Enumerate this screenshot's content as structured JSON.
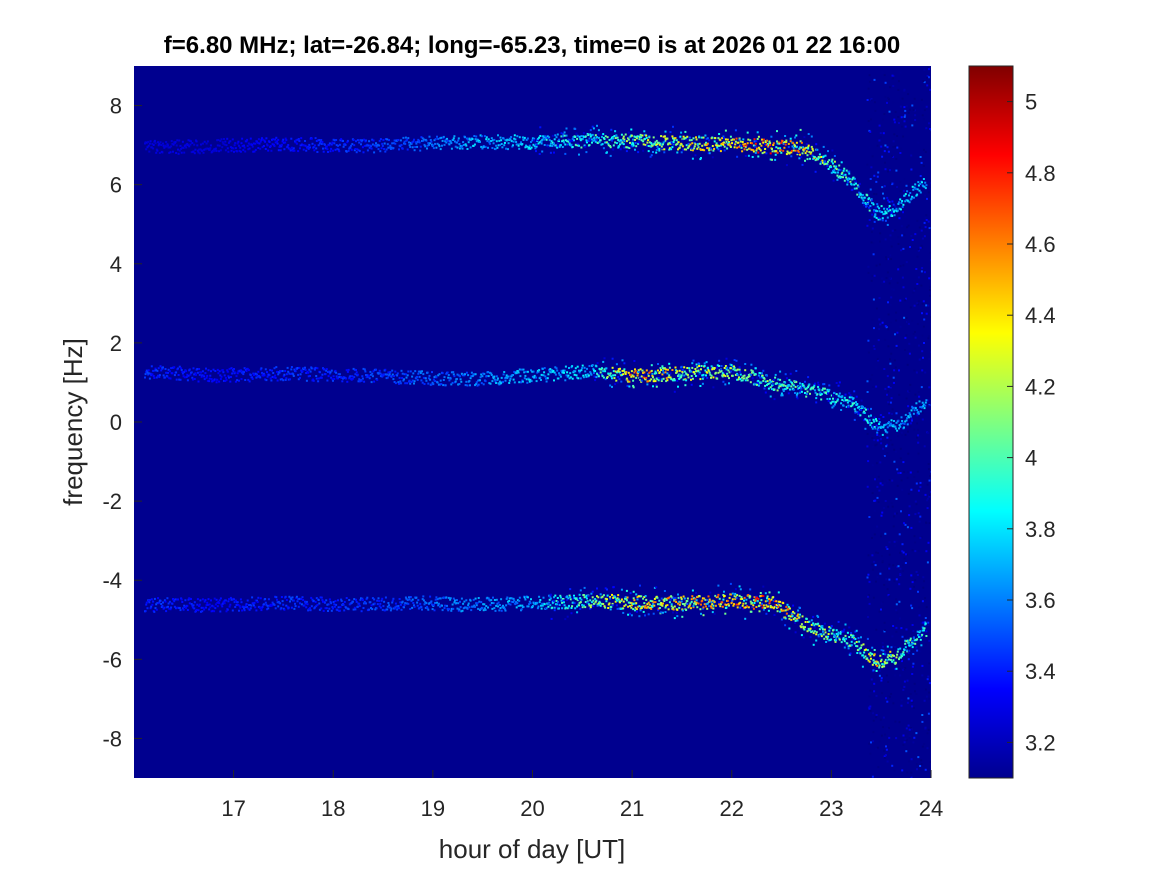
{
  "chart_data": {
    "type": "heatmap",
    "title": "f=6.80 MHz;  lat=-26.84; long=-65.23, time=0 is at 2026 01 22 16:00",
    "xlabel": "hour of day [UT]",
    "ylabel": "frequency [Hz]",
    "xlim": [
      16.0,
      24.0
    ],
    "ylim": [
      -9.0,
      9.0
    ],
    "xticks": [
      17,
      18,
      19,
      20,
      21,
      22,
      23,
      24
    ],
    "yticks": [
      -8,
      -6,
      -4,
      -2,
      0,
      2,
      4,
      6,
      8
    ],
    "colormap": "jet",
    "background_color": "#00008f",
    "colorbar": {
      "clim": [
        3.1,
        5.1
      ],
      "ticks": [
        3.2,
        3.4,
        3.6,
        3.8,
        4.0,
        4.2,
        4.4,
        4.6,
        4.8,
        5.0
      ],
      "tick_labels": [
        "3.2",
        "3.4",
        "3.6",
        "3.8",
        "4",
        "4.2",
        "4.4",
        "4.6",
        "4.8",
        "5"
      ]
    },
    "noise_region": {
      "x_start": 23.35,
      "x_end": 24.0
    },
    "traces": [
      {
        "points": [
          [
            16.1,
            6.95
          ],
          [
            16.8,
            7.0
          ],
          [
            17.5,
            7.05
          ],
          [
            18.2,
            7.0
          ],
          [
            18.8,
            7.05
          ],
          [
            19.4,
            7.1
          ],
          [
            20.0,
            7.1
          ],
          [
            20.6,
            7.15
          ],
          [
            21.2,
            7.1
          ],
          [
            21.8,
            7.05
          ],
          [
            22.3,
            7.0
          ],
          [
            22.7,
            6.95
          ],
          [
            22.95,
            6.6
          ],
          [
            23.2,
            6.1
          ],
          [
            23.45,
            5.3
          ],
          [
            23.6,
            5.35
          ],
          [
            23.8,
            5.8
          ],
          [
            23.95,
            6.1
          ]
        ],
        "peak_intensity": [
          3.3,
          3.3,
          3.4,
          3.5,
          3.6,
          3.8,
          3.9,
          4.1,
          4.4,
          4.6,
          4.9,
          4.7,
          4.3,
          4.1,
          4.0,
          3.9,
          3.9,
          3.8
        ]
      },
      {
        "points": [
          [
            16.1,
            1.3
          ],
          [
            16.8,
            1.2
          ],
          [
            17.5,
            1.25
          ],
          [
            18.2,
            1.2
          ],
          [
            18.8,
            1.15
          ],
          [
            19.4,
            1.1
          ],
          [
            20.0,
            1.2
          ],
          [
            20.6,
            1.3
          ],
          [
            21.0,
            1.2
          ],
          [
            21.5,
            1.25
          ],
          [
            22.0,
            1.3
          ],
          [
            22.4,
            1.0
          ],
          [
            22.8,
            0.8
          ],
          [
            23.2,
            0.5
          ],
          [
            23.5,
            -0.2
          ],
          [
            23.7,
            0.0
          ],
          [
            23.95,
            0.6
          ]
        ],
        "peak_intensity": [
          3.5,
          3.4,
          3.5,
          3.5,
          3.6,
          3.7,
          3.8,
          3.9,
          4.8,
          4.5,
          4.3,
          4.2,
          4.1,
          4.0,
          3.9,
          3.8,
          3.8
        ]
      },
      {
        "points": [
          [
            16.1,
            -4.6
          ],
          [
            16.8,
            -4.6
          ],
          [
            17.5,
            -4.55
          ],
          [
            18.2,
            -4.6
          ],
          [
            18.8,
            -4.55
          ],
          [
            19.4,
            -4.6
          ],
          [
            20.0,
            -4.55
          ],
          [
            20.6,
            -4.5
          ],
          [
            21.1,
            -4.55
          ],
          [
            21.6,
            -4.55
          ],
          [
            22.0,
            -4.5
          ],
          [
            22.4,
            -4.55
          ],
          [
            22.8,
            -5.2
          ],
          [
            23.2,
            -5.5
          ],
          [
            23.45,
            -6.05
          ],
          [
            23.65,
            -5.9
          ],
          [
            23.95,
            -5.2
          ]
        ],
        "peak_intensity": [
          3.5,
          3.4,
          3.5,
          3.5,
          3.6,
          3.7,
          3.8,
          4.3,
          4.6,
          4.7,
          4.8,
          4.9,
          4.4,
          4.2,
          4.6,
          4.3,
          4.0
        ]
      }
    ]
  }
}
